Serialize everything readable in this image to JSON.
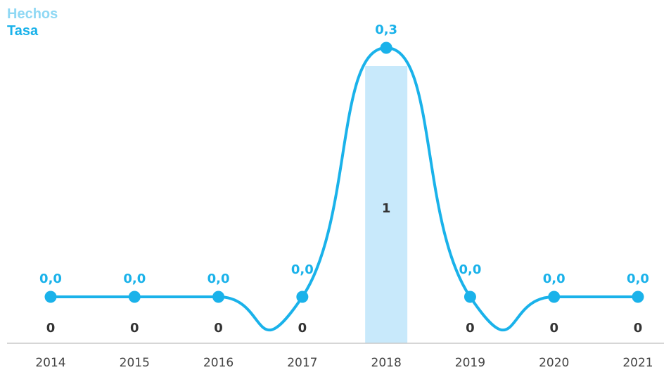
{
  "chart_data": {
    "type": "bar+line",
    "categories": [
      "2014",
      "2015",
      "2016",
      "2017",
      "2018",
      "2019",
      "2020",
      "2021"
    ],
    "series": [
      {
        "name": "Hechos",
        "kind": "bar",
        "color": "#c8e9fb",
        "values": [
          0,
          0,
          0,
          0,
          1,
          0,
          0,
          0
        ],
        "labels": [
          "0",
          "0",
          "0",
          "0",
          "1",
          "0",
          "0",
          "0"
        ]
      },
      {
        "name": "Tasa",
        "kind": "line",
        "color": "#1ab2ea",
        "values": [
          0.0,
          0.0,
          0.0,
          0.0,
          0.3,
          0.0,
          0.0,
          0.0
        ],
        "labels": [
          "0,0",
          "0,0",
          "0,0",
          "0,0",
          "0,3",
          "0,0",
          "0,0",
          "0,0"
        ]
      }
    ],
    "legend_position": "top-left",
    "grid": false
  }
}
